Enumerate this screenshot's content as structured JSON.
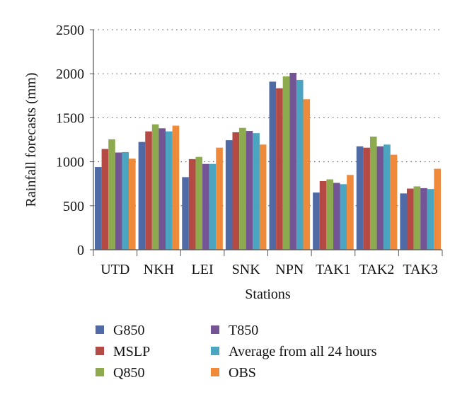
{
  "chart_data": {
    "type": "bar",
    "title": "",
    "xlabel": "Stations",
    "ylabel": "Rainfall forecasts (mm)",
    "ylim": [
      0,
      2500
    ],
    "yticks": [
      0,
      500,
      1000,
      1500,
      2000,
      2500
    ],
    "grid": "horizontal dotted",
    "legend_position": "bottom",
    "categories": [
      "UTD",
      "NKH",
      "LEI",
      "SNK",
      "NPN",
      "TAK1",
      "TAK2",
      "TAK3"
    ],
    "series": [
      {
        "name": "G850",
        "color": "#4F6AA5",
        "values": [
          940,
          1225,
          825,
          1245,
          1910,
          650,
          1175,
          640
        ]
      },
      {
        "name": "MSLP",
        "color": "#B54A45",
        "values": [
          1145,
          1345,
          1030,
          1335,
          1835,
          780,
          1160,
          695
        ]
      },
      {
        "name": "Q850",
        "color": "#8DAA4E",
        "values": [
          1255,
          1425,
          1055,
          1385,
          1970,
          800,
          1285,
          720
        ]
      },
      {
        "name": "T850",
        "color": "#735596",
        "values": [
          1105,
          1380,
          975,
          1350,
          2010,
          760,
          1175,
          700
        ]
      },
      {
        "name": "Average from all 24 hours",
        "color": "#4BA4C0",
        "values": [
          1110,
          1345,
          975,
          1325,
          1930,
          745,
          1195,
          690
        ]
      },
      {
        "name": "OBS",
        "color": "#EE8A3A",
        "values": [
          1035,
          1410,
          1160,
          1195,
          1710,
          850,
          1080,
          920
        ]
      }
    ]
  }
}
